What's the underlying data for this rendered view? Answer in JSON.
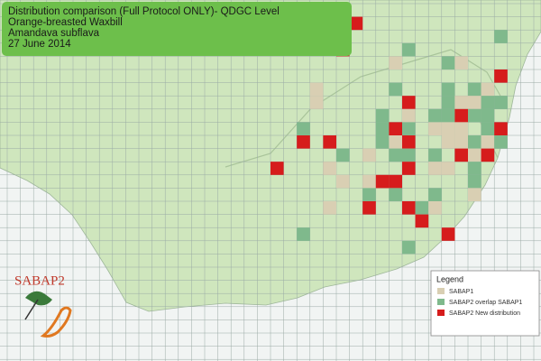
{
  "title_box": {
    "lines": [
      "Distribution comparison (Full Protocol ONLY)- QDGC Level",
      "Orange-breasted Waxbill",
      "Amandava subflava",
      "27 June 2014"
    ]
  },
  "logo": {
    "text": "SABAP2"
  },
  "legend": {
    "title": "Legend",
    "items": [
      "SABAP1",
      "SABAP2 overlap SABAP1",
      "SABAP2  New distribution"
    ]
  }
}
